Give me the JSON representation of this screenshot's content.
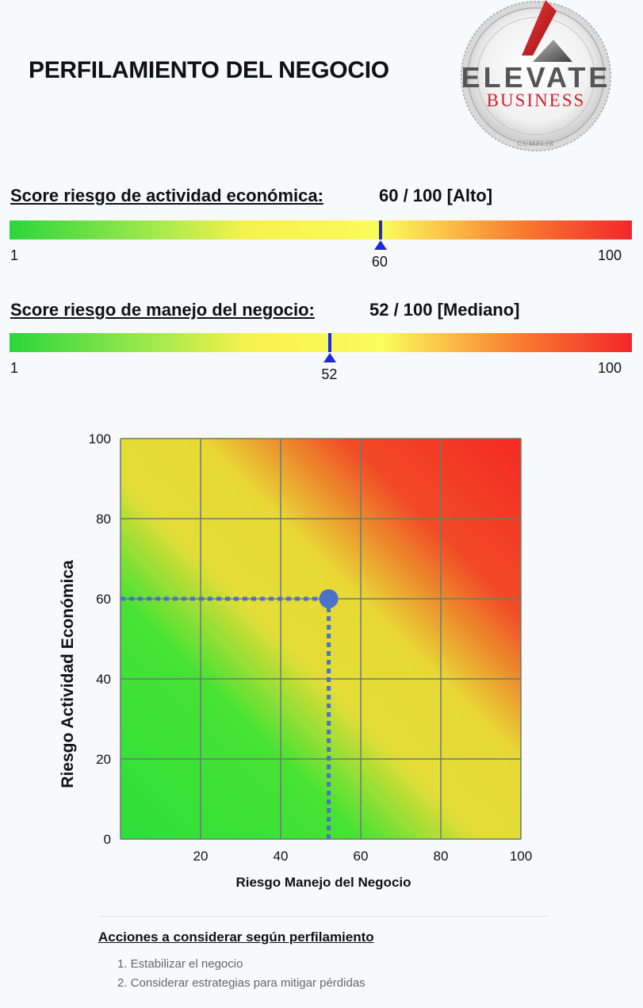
{
  "page": {
    "title": "PERFILAMIENTO DEL NEGOCIO"
  },
  "logo": {
    "line1": "ELEVATE",
    "line2": "BUSINESS",
    "line3": "CUMPLIR",
    "brand_colors": {
      "red": "#d3202a",
      "gray": "#555555"
    }
  },
  "scores": [
    {
      "label": "Score riesgo de actividad económica:",
      "value_text": "60 / 100 [Alto]",
      "value": 60,
      "min_label": "1",
      "max_label": "100",
      "marker_label": "60"
    },
    {
      "label": "Score riesgo de manejo del negocio:",
      "value_text": "52 / 100 [Mediano]",
      "value": 52,
      "min_label": "1",
      "max_label": "100",
      "marker_label": "52"
    }
  ],
  "chart_data": {
    "type": "scatter",
    "title": "",
    "xlabel": "Riesgo Manejo del Negocio",
    "ylabel": "Riesgo Actividad Económica",
    "xlim": [
      0,
      100
    ],
    "ylim": [
      0,
      100
    ],
    "x_ticks": [
      "20",
      "40",
      "60",
      "80",
      "100"
    ],
    "y_ticks": [
      "0",
      "20",
      "40",
      "60",
      "80",
      "100"
    ],
    "grid": true,
    "background": "heatmap gradient green (low) to yellow to red (high)",
    "points": [
      {
        "x": 52,
        "y": 60
      }
    ],
    "point_color": "#4a72c8"
  },
  "actions": {
    "title": "Acciones a considerar según perfilamiento",
    "items": [
      "1. Estabilizar el negocio",
      "2. Considerar estrategias para mitigar pérdidas"
    ]
  }
}
